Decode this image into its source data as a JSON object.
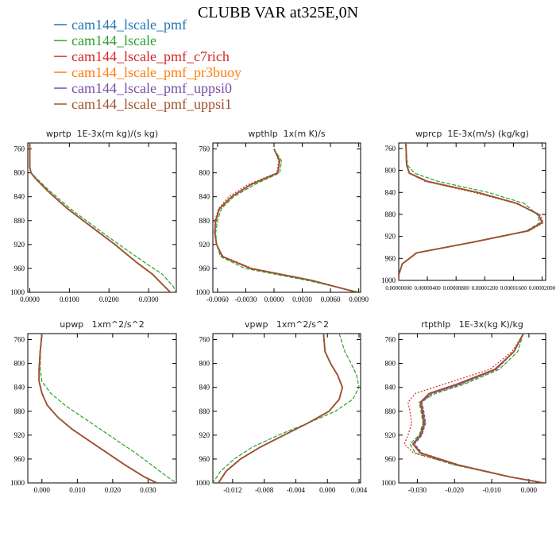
{
  "figure": {
    "title": "CLUBB VAR at325E,0N",
    "legend": [
      {
        "name": "cam144_lscale_pmf",
        "color": "#1f77b4"
      },
      {
        "name": "cam144_lscale",
        "color": "#2ca02c"
      },
      {
        "name": "cam144_lscale_pmf_c7rich",
        "color": "#d62728"
      },
      {
        "name": "cam144_lscale_pmf_pr3buoy",
        "color": "#ff7f0e"
      },
      {
        "name": "cam144_lscale_pmf_uppsi0",
        "color": "#7b4fa8"
      },
      {
        "name": "cam144_lscale_pmf_uppsi1",
        "color": "#a0522d"
      }
    ]
  },
  "chart_data": [
    {
      "type": "line",
      "title": "wprtp  1E-3x(m kg)/(s kg)",
      "xlim": [
        -0.0005,
        0.037
      ],
      "ylim": [
        750,
        1000
      ],
      "y_inverted": true,
      "xticks": [
        0.0,
        0.01,
        0.02,
        0.03
      ],
      "xtick_labels": [
        "0.0000",
        "0.0100",
        "0.0200",
        "0.0300"
      ],
      "yticks": [
        760,
        800,
        840,
        880,
        920,
        960,
        1000
      ],
      "y": [
        750,
        790,
        800,
        810,
        830,
        860,
        890,
        920,
        950,
        970,
        990,
        1000
      ],
      "series": [
        {
          "x": [
            0.0,
            0.0,
            0.0003,
            0.0015,
            0.0045,
            0.0095,
            0.0155,
            0.0215,
            0.027,
            0.031,
            0.034,
            0.0355
          ]
        },
        {
          "x": [
            0.0,
            0.0,
            0.0003,
            0.0018,
            0.005,
            0.0102,
            0.0163,
            0.0225,
            0.029,
            0.0335,
            0.0362,
            0.037
          ]
        },
        {
          "x": [
            0.0,
            0.0,
            0.0003,
            0.0015,
            0.0044,
            0.0094,
            0.0154,
            0.0214,
            0.0269,
            0.0309,
            0.0339,
            0.0354
          ]
        },
        {
          "x": [
            0.0,
            0.0,
            0.0003,
            0.0015,
            0.0045,
            0.0095,
            0.0155,
            0.0215,
            0.027,
            0.031,
            0.034,
            0.0355
          ]
        },
        {
          "x": [
            0.0,
            0.0,
            0.0003,
            0.0015,
            0.0045,
            0.0095,
            0.0155,
            0.0215,
            0.027,
            0.031,
            0.034,
            0.0355
          ]
        },
        {
          "x": [
            0.0,
            0.0,
            0.0003,
            0.0015,
            0.0045,
            0.0095,
            0.0155,
            0.0215,
            0.027,
            0.031,
            0.034,
            0.0355
          ]
        }
      ]
    },
    {
      "type": "line",
      "title": "wpthlp  1x(m K)/s",
      "xlim": [
        -0.0065,
        0.0092
      ],
      "ylim": [
        750,
        1000
      ],
      "y_inverted": true,
      "xticks": [
        -0.006,
        -0.003,
        0.0,
        0.003,
        0.006,
        0.009
      ],
      "xtick_labels": [
        "-0.0060",
        "-0.0030",
        "0.0000",
        "0.0030",
        "0.0060",
        "0.0090"
      ],
      "yticks": [
        760,
        800,
        840,
        880,
        920,
        960,
        1000
      ],
      "y": [
        760,
        780,
        800,
        820,
        840,
        860,
        880,
        900,
        920,
        940,
        960,
        980,
        1000
      ],
      "series": [
        {
          "x": [
            0.0,
            0.0006,
            0.0004,
            -0.0025,
            -0.0045,
            -0.0058,
            -0.0062,
            -0.0063,
            -0.0061,
            -0.0055,
            -0.0025,
            0.004,
            0.0088
          ]
        },
        {
          "x": [
            0.0,
            0.0008,
            0.0006,
            -0.0021,
            -0.0043,
            -0.0056,
            -0.006,
            -0.0062,
            -0.0061,
            -0.0057,
            -0.0031,
            0.0035,
            0.0091
          ]
        },
        {
          "x": [
            0.0,
            0.0005,
            0.0003,
            -0.0028,
            -0.0048,
            -0.0059,
            -0.0063,
            -0.0063,
            -0.0061,
            -0.0054,
            -0.0023,
            0.0041,
            0.0087
          ]
        },
        {
          "x": [
            0.0,
            0.0006,
            0.0004,
            -0.0025,
            -0.0045,
            -0.0058,
            -0.0062,
            -0.0063,
            -0.0061,
            -0.0055,
            -0.0025,
            0.004,
            0.0088
          ]
        },
        {
          "x": [
            0.0,
            0.0006,
            0.0004,
            -0.0025,
            -0.0045,
            -0.0058,
            -0.0062,
            -0.0063,
            -0.0061,
            -0.0055,
            -0.0025,
            0.004,
            0.0088
          ]
        },
        {
          "x": [
            0.0,
            0.0006,
            0.0004,
            -0.0025,
            -0.0045,
            -0.0058,
            -0.0062,
            -0.0063,
            -0.0061,
            -0.0055,
            -0.0025,
            0.004,
            0.0088
          ]
        }
      ]
    },
    {
      "type": "line",
      "title": "wprcp  1E-3x(m/s) (kg/kg)",
      "xlim": [
        0.0,
        2.05e-05
      ],
      "ylim": [
        750,
        1000
      ],
      "y_inverted": true,
      "xticks": [
        0.0,
        4e-06,
        8e-06,
        1.2e-05,
        1.6e-05,
        2e-05
      ],
      "xtick_labels": [
        "0.00000000",
        "0.00000400",
        "0.00000800",
        "0.00001200",
        "0.00001600",
        "0.00002000"
      ],
      "yticks": [
        760,
        800,
        840,
        880,
        920,
        960,
        1000
      ],
      "y": [
        750,
        790,
        805,
        820,
        840,
        860,
        880,
        895,
        910,
        930,
        950,
        970,
        990,
        1000
      ],
      "series": [
        {
          "x": [
            1e-06,
            1.1e-06,
            1.5e-06,
            4e-06,
            1.1e-05,
            1.65e-05,
            1.95e-05,
            2e-05,
            1.8e-05,
            1.05e-05,
            2.5e-06,
            5e-07,
            0.0,
            0.0
          ]
        },
        {
          "x": [
            1e-06,
            1.2e-06,
            2.2e-06,
            5.5e-06,
            1.25e-05,
            1.75e-05,
            1.93e-05,
            1.97e-05,
            1.78e-05,
            1.03e-05,
            2.4e-06,
            5e-07,
            0.0,
            0.0
          ]
        },
        {
          "x": [
            1e-06,
            1.1e-06,
            1.4e-06,
            3.7e-06,
            1.05e-05,
            1.63e-05,
            1.97e-05,
            2.02e-05,
            1.82e-05,
            1.06e-05,
            2.5e-06,
            5e-07,
            0.0,
            0.0
          ]
        },
        {
          "x": [
            1e-06,
            1.1e-06,
            1.5e-06,
            4e-06,
            1.1e-05,
            1.65e-05,
            1.95e-05,
            2e-05,
            1.8e-05,
            1.05e-05,
            2.5e-06,
            5e-07,
            0.0,
            0.0
          ]
        },
        {
          "x": [
            1e-06,
            1.1e-06,
            1.5e-06,
            4e-06,
            1.1e-05,
            1.65e-05,
            1.95e-05,
            2e-05,
            1.8e-05,
            1.05e-05,
            2.5e-06,
            5e-07,
            0.0,
            0.0
          ]
        },
        {
          "x": [
            1e-06,
            1.1e-06,
            1.5e-06,
            4e-06,
            1.1e-05,
            1.65e-05,
            1.95e-05,
            2e-05,
            1.8e-05,
            1.05e-05,
            2.5e-06,
            5e-07,
            0.0,
            0.0
          ]
        }
      ]
    },
    {
      "type": "line",
      "title": "upwp   1xm^2/s^2",
      "xlim": [
        -0.004,
        0.038
      ],
      "ylim": [
        750,
        1000
      ],
      "y_inverted": true,
      "xticks": [
        0.0,
        0.01,
        0.02,
        0.03
      ],
      "xtick_labels": [
        "0.000",
        "0.010",
        "0.020",
        "0.030"
      ],
      "yticks": [
        760,
        800,
        840,
        880,
        920,
        960,
        1000
      ],
      "y": [
        750,
        780,
        810,
        830,
        850,
        870,
        890,
        910,
        930,
        950,
        970,
        990,
        1000
      ],
      "series": [
        {
          "x": [
            0.0,
            -0.0005,
            -0.0008,
            -0.0008,
            0.0,
            0.0015,
            0.0045,
            0.0085,
            0.0135,
            0.0185,
            0.0235,
            0.029,
            0.0325
          ]
        },
        {
          "x": [
            0.0,
            -0.0004,
            -0.0005,
            0.0,
            0.0025,
            0.0065,
            0.0115,
            0.0165,
            0.0215,
            0.0265,
            0.031,
            0.0355,
            0.038
          ]
        },
        {
          "x": [
            0.0,
            -0.0005,
            -0.0008,
            -0.0008,
            0.0,
            0.0015,
            0.0045,
            0.0085,
            0.0135,
            0.0185,
            0.0235,
            0.029,
            0.0325
          ]
        },
        {
          "x": [
            0.0,
            -0.0005,
            -0.0008,
            -0.0008,
            0.0,
            0.0015,
            0.0045,
            0.0085,
            0.0135,
            0.0185,
            0.0235,
            0.029,
            0.0325
          ]
        },
        {
          "x": [
            0.0,
            -0.0005,
            -0.0008,
            -0.0008,
            0.0,
            0.0015,
            0.0045,
            0.0085,
            0.0135,
            0.0185,
            0.0235,
            0.029,
            0.0325
          ]
        },
        {
          "x": [
            0.0,
            -0.0005,
            -0.0008,
            -0.0008,
            0.0,
            0.0015,
            0.0045,
            0.0085,
            0.0135,
            0.0185,
            0.0235,
            0.029,
            0.0325
          ]
        }
      ]
    },
    {
      "type": "line",
      "title": "vpwp   1xm^2/s^2",
      "xlim": [
        -0.0145,
        0.0042
      ],
      "ylim": [
        750,
        1000
      ],
      "y_inverted": true,
      "xticks": [
        -0.012,
        -0.008,
        -0.004,
        0.0,
        0.004
      ],
      "xtick_labels": [
        "-0.012",
        "-0.008",
        "-0.004",
        "0.000",
        "0.004"
      ],
      "yticks": [
        760,
        800,
        840,
        880,
        920,
        960,
        1000
      ],
      "y": [
        750,
        780,
        800,
        820,
        840,
        860,
        880,
        900,
        920,
        940,
        960,
        980,
        1000
      ],
      "series": [
        {
          "x": [
            -0.0005,
            -0.0003,
            0.0004,
            0.0013,
            0.0019,
            0.0015,
            0.0002,
            -0.0025,
            -0.0055,
            -0.0085,
            -0.011,
            -0.0128,
            -0.0138
          ]
        },
        {
          "x": [
            0.0015,
            0.0022,
            0.003,
            0.0037,
            0.004,
            0.0032,
            0.001,
            -0.0025,
            -0.0062,
            -0.0095,
            -0.0118,
            -0.0135,
            -0.0145
          ]
        },
        {
          "x": [
            -0.0005,
            -0.0003,
            0.0004,
            0.0013,
            0.0019,
            0.0015,
            0.0002,
            -0.0025,
            -0.0055,
            -0.0085,
            -0.011,
            -0.0128,
            -0.0138
          ]
        },
        {
          "x": [
            -0.0005,
            -0.0003,
            0.0004,
            0.0013,
            0.0019,
            0.0015,
            0.0002,
            -0.0025,
            -0.0055,
            -0.0085,
            -0.011,
            -0.0128,
            -0.0138
          ]
        },
        {
          "x": [
            -0.0005,
            -0.0003,
            0.0004,
            0.0013,
            0.0019,
            0.0015,
            0.0002,
            -0.0025,
            -0.0055,
            -0.0085,
            -0.011,
            -0.0128,
            -0.0138
          ]
        },
        {
          "x": [
            -0.0005,
            -0.0003,
            0.0004,
            0.0013,
            0.0019,
            0.0015,
            0.0002,
            -0.0025,
            -0.0055,
            -0.0085,
            -0.011,
            -0.0128,
            -0.0138
          ]
        }
      ]
    },
    {
      "type": "line",
      "title": "rtpthlp   1E-3x(kg K)/kg",
      "xlim": [
        -0.035,
        0.0045
      ],
      "ylim": [
        750,
        1000
      ],
      "y_inverted": true,
      "xticks": [
        -0.03,
        -0.02,
        -0.01,
        0.0
      ],
      "xtick_labels": [
        "-0.030",
        "-0.020",
        "-0.010",
        "0.000"
      ],
      "yticks": [
        760,
        800,
        840,
        880,
        920,
        960,
        1000
      ],
      "y": [
        750,
        780,
        810,
        835,
        850,
        865,
        880,
        900,
        920,
        935,
        950,
        970,
        990,
        1000
      ],
      "series": [
        {
          "x": [
            -0.0015,
            -0.004,
            -0.009,
            -0.019,
            -0.0265,
            -0.029,
            -0.0285,
            -0.028,
            -0.029,
            -0.031,
            -0.029,
            -0.019,
            -0.005,
            0.004
          ]
        },
        {
          "x": [
            -0.0015,
            -0.003,
            -0.008,
            -0.0175,
            -0.025,
            -0.0295,
            -0.029,
            -0.0285,
            -0.0295,
            -0.032,
            -0.0305,
            -0.02,
            -0.005,
            0.004
          ]
        },
        {
          "x": [
            -0.0015,
            -0.0045,
            -0.0105,
            -0.023,
            -0.0305,
            -0.0325,
            -0.032,
            -0.0315,
            -0.0325,
            -0.0335,
            -0.031,
            -0.0195,
            -0.005,
            0.004
          ]
        },
        {
          "x": [
            -0.0015,
            -0.004,
            -0.009,
            -0.019,
            -0.0265,
            -0.029,
            -0.0285,
            -0.028,
            -0.029,
            -0.031,
            -0.029,
            -0.019,
            -0.005,
            0.004
          ]
        },
        {
          "x": [
            -0.0015,
            -0.004,
            -0.0088,
            -0.0185,
            -0.026,
            -0.0288,
            -0.0283,
            -0.0278,
            -0.0288,
            -0.0308,
            -0.0288,
            -0.0188,
            -0.005,
            0.004
          ]
        },
        {
          "x": [
            -0.0015,
            -0.004,
            -0.0092,
            -0.0195,
            -0.0268,
            -0.0292,
            -0.0287,
            -0.0282,
            -0.0292,
            -0.0312,
            -0.0292,
            -0.0192,
            -0.005,
            0.004
          ]
        }
      ]
    }
  ]
}
